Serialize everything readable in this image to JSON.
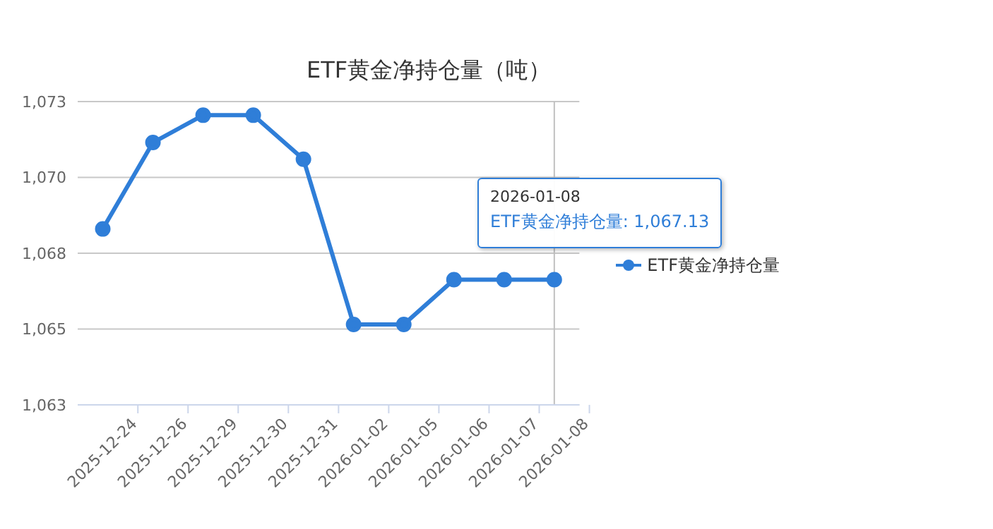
{
  "chart_data": {
    "type": "line",
    "title": "ETF黄金净持仓量（吨）",
    "categories": [
      "2025-12-24",
      "2025-12-26",
      "2025-12-29",
      "2025-12-30",
      "2025-12-31",
      "2026-01-02",
      "2026-01-05",
      "2026-01-06",
      "2026-01-07",
      "2026-01-08"
    ],
    "series": [
      {
        "name": "ETF黄金净持仓量",
        "color": "#2f7ed8",
        "values": [
          1068.8,
          1071.65,
          1072.55,
          1072.55,
          1071.1,
          1065.65,
          1065.65,
          1067.13,
          1067.13,
          1067.13
        ]
      }
    ],
    "ylim": [
      1063,
      1073
    ],
    "yticks": [
      {
        "value": 1063,
        "label": "1,063"
      },
      {
        "value": 1065.5,
        "label": "1,065"
      },
      {
        "value": 1068,
        "label": "1,068"
      },
      {
        "value": 1070.5,
        "label": "1,070"
      },
      {
        "value": 1073,
        "label": "1,073"
      }
    ],
    "grid": "y",
    "legend": "right",
    "marker": "circle",
    "line_style": "solid",
    "ref_lines": [
      {
        "axis": "x",
        "value": "2026-01-08",
        "color": "#c0c0c0"
      }
    ],
    "annotations": [
      "2026-01-08",
      "ETF黄金净持仓量: 1,067.13"
    ]
  }
}
